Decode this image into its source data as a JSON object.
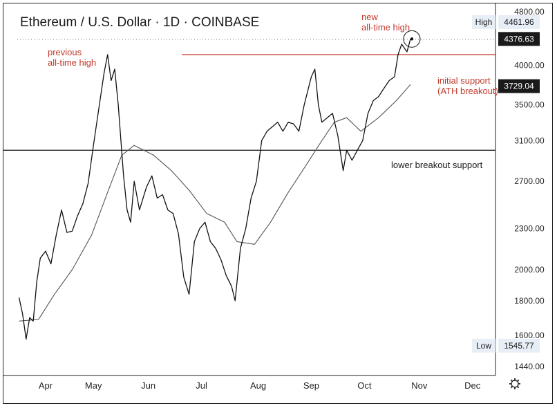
{
  "chart_data": {
    "type": "line",
    "title": "Ethereum / U.S. Dollar · 1D · COINBASE",
    "x_ticks": [
      "Apr",
      "May",
      "Jun",
      "Jul",
      "Aug",
      "Sep",
      "Oct",
      "Nov",
      "Dec"
    ],
    "y_ticks": [
      "4800.00",
      "4000.00",
      "3500.00",
      "3100.00",
      "2700.00",
      "2300.00",
      "2000.00",
      "1800.00",
      "1600.00",
      "1440.00"
    ],
    "ylim": [
      1440,
      4800
    ],
    "y_scale": "log",
    "grid": false,
    "series": [
      {
        "role": "price",
        "color": "#111111",
        "x": [
          "Mar 21",
          "Mar 23",
          "Mar 25",
          "Mar 27",
          "Mar 29",
          "Mar 31",
          "Apr 2",
          "Apr 5",
          "Apr 8",
          "Apr 11",
          "Apr 14",
          "Apr 17",
          "Apr 20",
          "Apr 23",
          "Apr 26",
          "Apr 29",
          "May 2",
          "May 5",
          "May 8",
          "May 10",
          "May 12",
          "May 14",
          "May 16",
          "May 19",
          "May 21",
          "May 23",
          "May 25",
          "May 28",
          "Jun 1",
          "Jun 4",
          "Jun 7",
          "Jun 10",
          "Jun 13",
          "Jun 16",
          "Jun 19",
          "Jun 22",
          "Jun 25",
          "Jun 28",
          "Jul 1",
          "Jul 4",
          "Jul 7",
          "Jul 10",
          "Jul 13",
          "Jul 16",
          "Jul 19",
          "Jul 21",
          "Jul 24",
          "Jul 27",
          "Jul 30",
          "Aug 2",
          "Aug 5",
          "Aug 8",
          "Aug 11",
          "Aug 14",
          "Aug 17",
          "Aug 20",
          "Aug 23",
          "Aug 26",
          "Aug 29",
          "Sep 2",
          "Sep 4",
          "Sep 6",
          "Sep 8",
          "Sep 11",
          "Sep 14",
          "Sep 17",
          "Sep 20",
          "Sep 22",
          "Sep 25",
          "Sep 28",
          "Oct 1",
          "Oct 4",
          "Oct 7",
          "Oct 10",
          "Oct 13",
          "Oct 16",
          "Oct 19",
          "Oct 21",
          "Oct 23",
          "Oct 26",
          "Oct 28"
        ],
        "y": [
          1820,
          1720,
          1580,
          1700,
          1680,
          1920,
          2080,
          2130,
          2040,
          2250,
          2450,
          2270,
          2280,
          2400,
          2500,
          2680,
          3050,
          3450,
          3900,
          4150,
          3800,
          3950,
          3500,
          2750,
          2450,
          2350,
          2700,
          2450,
          2650,
          2750,
          2550,
          2580,
          2450,
          2420,
          2260,
          1950,
          1840,
          2200,
          2300,
          2350,
          2200,
          2150,
          2070,
          1960,
          1890,
          1800,
          2150,
          2300,
          2550,
          2700,
          3100,
          3200,
          3250,
          3300,
          3200,
          3300,
          3280,
          3200,
          3500,
          3850,
          3950,
          3500,
          3300,
          3350,
          3400,
          3150,
          2800,
          3000,
          2900,
          3000,
          3100,
          3400,
          3550,
          3600,
          3700,
          3800,
          3850,
          4150,
          4300,
          4190,
          4376.63
        ]
      },
      {
        "role": "moving-average",
        "color": "#555555",
        "x": [
          "Mar 21",
          "Apr 1",
          "Apr 10",
          "Apr 20",
          "May 1",
          "May 10",
          "May 18",
          "May 25",
          "Jun 5",
          "Jun 15",
          "Jun 25",
          "Jul 5",
          "Jul 15",
          "Jul 22",
          "Aug 1",
          "Aug 10",
          "Aug 20",
          "Aug 30",
          "Sep 8",
          "Sep 15",
          "Sep 22",
          "Sep 30",
          "Oct 10",
          "Oct 20",
          "Oct 28"
        ],
        "y": [
          1680,
          1690,
          1840,
          2000,
          2250,
          2600,
          2950,
          3050,
          2950,
          2800,
          2620,
          2420,
          2350,
          2200,
          2180,
          2350,
          2600,
          2850,
          3100,
          3300,
          3350,
          3200,
          3350,
          3550,
          3750
        ]
      }
    ],
    "levels": [
      {
        "label": "previous all-time high",
        "value": 4150,
        "color": "#c0392b"
      },
      {
        "label": "lower breakout support",
        "value": 3000,
        "color": "#111111"
      }
    ],
    "annotations": [
      {
        "text_lines": [
          "previous",
          "all-time high"
        ],
        "color": "#c0392b"
      },
      {
        "text_lines": [
          "new",
          "all-time high"
        ],
        "color": "#c0392b"
      },
      {
        "text_lines": [
          "initial support",
          "(ATH breakout)"
        ],
        "color": "#c0392b"
      },
      {
        "text_lines": [
          "lower breakout support"
        ],
        "color": "#111111"
      }
    ],
    "price_labels": [
      {
        "label": "High",
        "value": "4461.96"
      },
      {
        "label": "",
        "value": "4376.63",
        "highlight": true
      },
      {
        "label": "",
        "value": "3729.04",
        "highlight": true
      },
      {
        "label": "Low",
        "value": "1545.77"
      }
    ],
    "colors": {
      "price": "#111111",
      "ma": "#555555",
      "ath_line": "#c0392b",
      "support_line": "#111111",
      "annotation": "#c0392b",
      "box_fill": "#e8eef6",
      "tag_fill": "#1a1a1a"
    }
  },
  "settings_icon": "gear-icon"
}
